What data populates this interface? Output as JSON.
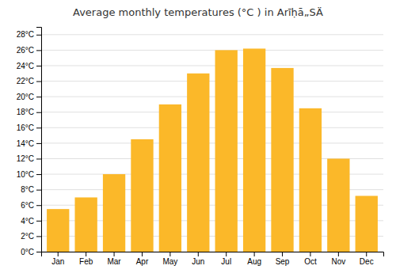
{
  "chart_data": {
    "type": "bar",
    "title": "Average monthly temperatures (°C ) in Arīḥā„SÄ",
    "categories": [
      "Jan",
      "Feb",
      "Mar",
      "Apr",
      "May",
      "Jun",
      "Jul",
      "Aug",
      "Sep",
      "Oct",
      "Nov",
      "Dec"
    ],
    "values": [
      5.5,
      7.0,
      10.0,
      14.5,
      19.0,
      23.0,
      26.0,
      26.2,
      23.7,
      18.5,
      12.0,
      7.2
    ],
    "color": "#FBB829",
    "ylim": [
      0,
      29
    ],
    "yticks": [
      {
        "value": 0,
        "label": "0°C"
      },
      {
        "value": 2,
        "label": "2°C"
      },
      {
        "value": 4,
        "label": "4°C"
      },
      {
        "value": 6,
        "label": "6°C"
      },
      {
        "value": 8,
        "label": "8°C"
      },
      {
        "value": 10,
        "label": "10°C"
      },
      {
        "value": 12,
        "label": "12°C"
      },
      {
        "value": 14,
        "label": "14°C"
      },
      {
        "value": 16,
        "label": "16°C"
      },
      {
        "value": 18,
        "label": "18°C"
      },
      {
        "value": 20,
        "label": "20°C"
      },
      {
        "value": 22,
        "label": "22°C"
      },
      {
        "value": 24,
        "label": "24°C"
      },
      {
        "value": 26,
        "label": "26°C"
      },
      {
        "value": 28,
        "label": "28°C"
      }
    ],
    "grid": true
  }
}
